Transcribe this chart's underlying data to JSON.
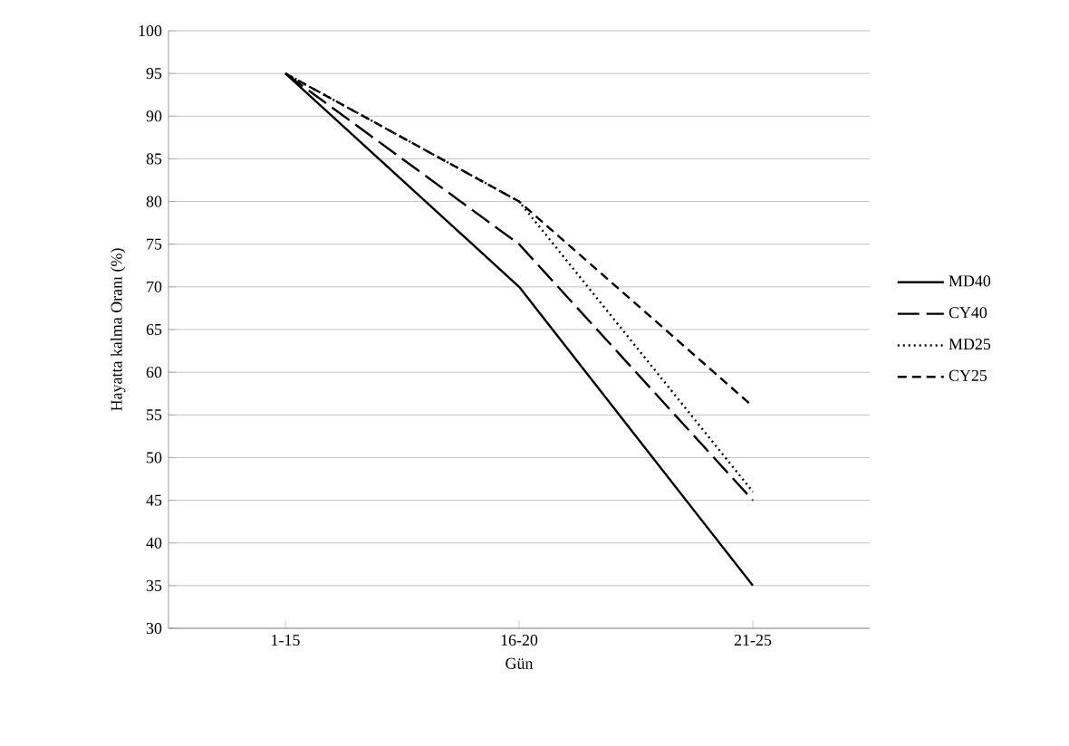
{
  "chart_data": {
    "type": "line",
    "xlabel": "Gün",
    "ylabel": "Hayatta kalma Oranı (%)",
    "categories": [
      "1-15",
      "16-20",
      "21-25"
    ],
    "series": [
      {
        "name": "MD40",
        "color": "#000000",
        "line_style": "solid",
        "values": [
          95,
          70,
          35
        ]
      },
      {
        "name": "CY40",
        "color": "#000000",
        "line_style": "longdash",
        "values": [
          95,
          75,
          45
        ]
      },
      {
        "name": "MD25",
        "color": "#000000",
        "line_style": "dotted",
        "values": [
          95,
          80,
          46
        ]
      },
      {
        "name": "CY25",
        "color": "#000000",
        "line_style": "dashed",
        "values": [
          95,
          80,
          56
        ]
      }
    ],
    "ylim": [
      30,
      100
    ],
    "yticks": [
      30,
      35,
      40,
      45,
      50,
      55,
      60,
      65,
      70,
      75,
      80,
      85,
      90,
      95,
      100
    ],
    "grid": "y",
    "legend": "right",
    "marker": "none"
  }
}
